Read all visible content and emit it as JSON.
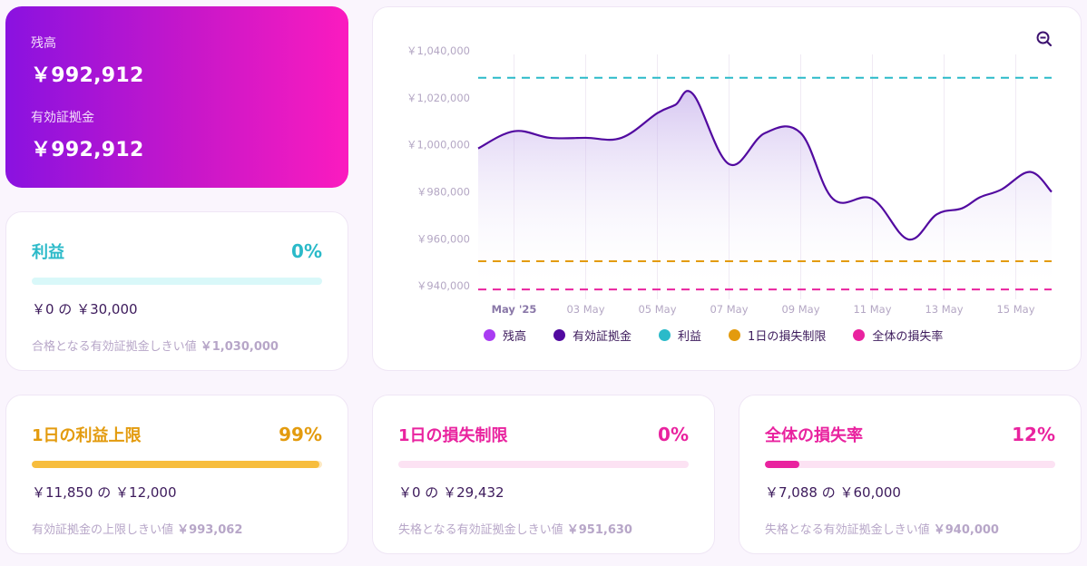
{
  "balance": {
    "balance_label": "残高",
    "balance_value": "￥992,912",
    "equity_label": "有効証拠金",
    "equity_value": "￥992,912"
  },
  "profit": {
    "title": "利益",
    "pct": "0%",
    "progress": 0.0,
    "range": "￥0 の ￥30,000",
    "threshold_label": "合格となる有効証拠金しきい値",
    "threshold_value": "￥1,030,000",
    "color": "#2bbac9",
    "track": "#d9f8f9"
  },
  "daily_profit": {
    "title": "1日の利益上限",
    "pct": "99%",
    "progress": 0.99,
    "range": "￥11,850 の ￥12,000",
    "threshold_label": "有効証拠金の上限しきい値",
    "threshold_value": "￥993,062",
    "color": "#e39b0e",
    "fill": "#f7bd3d",
    "track": "#fde9c2"
  },
  "daily_loss": {
    "title": "1日の損失制限",
    "pct": "0%",
    "progress": 0.0,
    "range": "￥0 の ￥29,432",
    "threshold_label": "失格となる有効証拠金しきい値",
    "threshold_value": "￥951,630",
    "color": "#e9239f",
    "track": "#fce2f3"
  },
  "total_loss": {
    "title": "全体の損失率",
    "pct": "12%",
    "progress": 0.12,
    "range": "￥7,088 の ￥60,000",
    "threshold_label": "失格となる有効証拠金しきい値",
    "threshold_value": "￥940,000",
    "color": "#e9239f",
    "track": "#fce2f3"
  },
  "chart_data": {
    "type": "line",
    "y_ticks": [
      "￥1,040,000",
      "￥1,020,000",
      "￥1,000,000",
      "￥980,000",
      "￥960,000",
      "￥940,000"
    ],
    "ylim": [
      937000,
      1040000
    ],
    "x_ticks": [
      "May '25",
      "03 May",
      "05 May",
      "07 May",
      "09 May",
      "11 May",
      "13 May",
      "15 May"
    ],
    "x_tick_days": [
      1,
      3,
      5,
      7,
      9,
      11,
      13,
      15
    ],
    "xlim": [
      0,
      16
    ],
    "series": [
      {
        "name": "有効証拠金",
        "color": "#520aa0",
        "x": [
          0,
          1,
          2,
          3,
          4,
          5,
          5.5,
          6,
          7,
          8,
          9,
          9.9,
          11,
          12,
          12.8,
          13.5,
          14,
          14.6,
          15.4,
          16
        ],
        "y": [
          998500,
          1005800,
          1003000,
          1003000,
          1003000,
          1013500,
          1017000,
          1021500,
          991800,
          1005000,
          1005000,
          977000,
          977000,
          959800,
          970500,
          973000,
          977700,
          981000,
          988500,
          980000
        ]
      }
    ],
    "reference_lines": [
      {
        "name": "利益",
        "value": 1028500,
        "color": "#2bbac9"
      },
      {
        "name": "1日の損失制限",
        "value": 950500,
        "color": "#e39b0e"
      },
      {
        "name": "全体の損失率",
        "value": 938500,
        "color": "#e9239f"
      }
    ],
    "legend": [
      {
        "name": "残高",
        "color": "#a93cf2"
      },
      {
        "name": "有効証拠金",
        "color": "#520aa0"
      },
      {
        "name": "利益",
        "color": "#2bbac9"
      },
      {
        "name": "1日の損失制限",
        "color": "#e39b0e"
      },
      {
        "name": "全体の損失率",
        "color": "#e9239f"
      }
    ],
    "legend_position": "bottom"
  },
  "icons": {
    "zoom_out": "zoom-out-icon"
  }
}
